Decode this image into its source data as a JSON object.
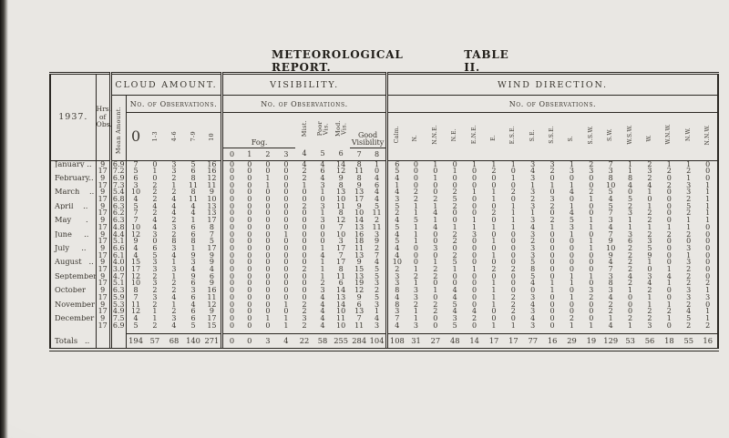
{
  "header": {
    "title": "METEOROLOGICAL REPORT.",
    "table_no": "TABLE II."
  },
  "table": {
    "year_label": "1937.",
    "hours_label": "Hrs.\nof\nObs.",
    "groups": {
      "cloud": {
        "title": "CLOUD AMOUNT.",
        "obs_label": "No. of Observations.",
        "mean_label": "Mean Amount.",
        "cols": [
          "0",
          "1-3",
          "4-6",
          "7-9",
          "10"
        ]
      },
      "visibility": {
        "title": "VISIBILITY.",
        "obs_label": "No. of Observations.",
        "fog_label": "Fog.",
        "mist_label": "Mist.",
        "poor_label": "Poor\nVis.",
        "mod_label": "Mod.\nVis.",
        "good_label": "Good\nVisibility",
        "cols": [
          "0",
          "1",
          "2",
          "3",
          "4",
          "5",
          "6",
          "7",
          "8"
        ]
      },
      "wind": {
        "title": "WIND DIRECTION.",
        "obs_label": "No. of Observations.",
        "cols": [
          "Calm.",
          "N.",
          "N.N.E.",
          "N.E.",
          "E.N.E.",
          "E.",
          "E.S.E.",
          "S.E.",
          "S.S.E.",
          "S.",
          "S.S.W.",
          "S.W.",
          "W.S.W.",
          "W.",
          "W.N.W.",
          "N.W.",
          "N.N.W."
        ]
      }
    },
    "rows": [
      {
        "month": "January ..",
        "hrs": "9",
        "mean": "6.9",
        "cloud": [
          7,
          0,
          3,
          5,
          16
        ],
        "vis": [
          0,
          0,
          0,
          0,
          4,
          4,
          14,
          8,
          1
        ],
        "wind": [
          6,
          0,
          1,
          0,
          1,
          1,
          1,
          3,
          3,
          1,
          2,
          7,
          1,
          2,
          1,
          1,
          0
        ]
      },
      {
        "month": "",
        "hrs": "17",
        "mean": "7.2",
        "cloud": [
          5,
          1,
          3,
          6,
          16
        ],
        "vis": [
          0,
          0,
          0,
          0,
          2,
          6,
          12,
          11,
          0
        ],
        "wind": [
          5,
          0,
          0,
          1,
          0,
          2,
          0,
          4,
          2,
          3,
          3,
          3,
          1,
          3,
          2,
          2,
          0
        ]
      },
      {
        "month": "February..",
        "hrs": "9",
        "mean": "6.9",
        "cloud": [
          6,
          0,
          2,
          8,
          12
        ],
        "vis": [
          0,
          0,
          1,
          0,
          2,
          4,
          9,
          8,
          4
        ],
        "wind": [
          4,
          0,
          1,
          0,
          0,
          0,
          1,
          3,
          0,
          0,
          0,
          8,
          8,
          2,
          0,
          1,
          0
        ]
      },
      {
        "month": "",
        "hrs": "17",
        "mean": "7.3",
        "cloud": [
          3,
          2,
          1,
          11,
          11
        ],
        "vis": [
          0,
          0,
          1,
          0,
          1,
          3,
          8,
          9,
          6
        ],
        "wind": [
          1,
          0,
          0,
          0,
          0,
          0,
          0,
          1,
          1,
          1,
          0,
          10,
          4,
          4,
          2,
          3,
          1
        ]
      },
      {
        "month": "March    ..",
        "hrs": "9",
        "mean": "5.4",
        "cloud": [
          10,
          2,
          2,
          8,
          9
        ],
        "vis": [
          0,
          0,
          0,
          0,
          0,
          1,
          13,
          13,
          4
        ],
        "wind": [
          4,
          2,
          0,
          2,
          1,
          1,
          2,
          3,
          0,
          4,
          2,
          5,
          0,
          1,
          0,
          3,
          1
        ]
      },
      {
        "month": "",
        "hrs": "17",
        "mean": "6.8",
        "cloud": [
          4,
          2,
          4,
          11,
          10
        ],
        "vis": [
          0,
          0,
          0,
          0,
          0,
          0,
          10,
          17,
          4
        ],
        "wind": [
          3,
          2,
          2,
          5,
          0,
          1,
          0,
          2,
          3,
          0,
          1,
          4,
          5,
          0,
          0,
          2,
          1
        ]
      },
      {
        "month": "April    ..",
        "hrs": "9",
        "mean": "6.3",
        "cloud": [
          5,
          4,
          4,
          4,
          13
        ],
        "vis": [
          0,
          0,
          0,
          0,
          2,
          3,
          11,
          9,
          5
        ],
        "wind": [
          5,
          1,
          1,
          2,
          0,
          0,
          1,
          3,
          2,
          1,
          0,
          5,
          2,
          1,
          0,
          5,
          1
        ]
      },
      {
        "month": "",
        "hrs": "17",
        "mean": "6.2",
        "cloud": [
          7,
          2,
          4,
          4,
          13
        ],
        "vis": [
          0,
          0,
          0,
          0,
          0,
          1,
          8,
          10,
          11
        ],
        "wind": [
          2,
          1,
          4,
          0,
          0,
          2,
          1,
          1,
          0,
          4,
          0,
          7,
          3,
          2,
          0,
          2,
          1
        ]
      },
      {
        "month": "May      .",
        "hrs": "9",
        "mean": "6.3",
        "cloud": [
          7,
          4,
          2,
          1,
          17
        ],
        "vis": [
          0,
          0,
          0,
          0,
          0,
          3,
          12,
          14,
          2
        ],
        "wind": [
          4,
          5,
          1,
          0,
          1,
          0,
          1,
          3,
          2,
          5,
          1,
          3,
          1,
          2,
          0,
          1,
          1
        ]
      },
      {
        "month": "",
        "hrs": "17",
        "mean": "4.8",
        "cloud": [
          10,
          4,
          3,
          6,
          8
        ],
        "vis": [
          0,
          0,
          0,
          0,
          0,
          0,
          7,
          13,
          11
        ],
        "wind": [
          5,
          1,
          4,
          1,
          1,
          1,
          1,
          4,
          1,
          3,
          1,
          4,
          1,
          1,
          1,
          1,
          0
        ]
      },
      {
        "month": "June     ..",
        "hrs": "9",
        "mean": "4.4",
        "cloud": [
          12,
          3,
          2,
          6,
          7
        ],
        "vis": [
          0,
          0,
          0,
          1,
          0,
          0,
          10,
          16,
          3
        ],
        "wind": [
          4,
          1,
          0,
          2,
          3,
          0,
          0,
          3,
          0,
          1,
          0,
          7,
          3,
          2,
          2,
          2,
          0
        ]
      },
      {
        "month": "",
        "hrs": "17",
        "mean": "5.1",
        "cloud": [
          9,
          0,
          8,
          8,
          5
        ],
        "vis": [
          0,
          0,
          0,
          0,
          0,
          0,
          3,
          18,
          9
        ],
        "wind": [
          5,
          1,
          0,
          2,
          0,
          1,
          0,
          2,
          0,
          0,
          1,
          9,
          6,
          3,
          0,
          0,
          0
        ]
      },
      {
        "month": "July     ..",
        "hrs": "9",
        "mean": "6.6",
        "cloud": [
          4,
          6,
          3,
          1,
          17
        ],
        "vis": [
          0,
          0,
          0,
          0,
          0,
          1,
          17,
          11,
          2
        ],
        "wind": [
          4,
          0,
          3,
          0,
          0,
          0,
          0,
          3,
          0,
          0,
          1,
          10,
          2,
          5,
          0,
          3,
          0
        ]
      },
      {
        "month": "",
        "hrs": "17",
        "mean": "6.1",
        "cloud": [
          4,
          5,
          4,
          9,
          9
        ],
        "vis": [
          0,
          0,
          0,
          0,
          0,
          4,
          7,
          13,
          7
        ],
        "wind": [
          4,
          0,
          0,
          2,
          0,
          1,
          0,
          3,
          0,
          0,
          0,
          9,
          2,
          9,
          0,
          1,
          0
        ]
      },
      {
        "month": "August   ..",
        "hrs": "9",
        "mean": "4.0",
        "cloud": [
          15,
          3,
          1,
          3,
          9
        ],
        "vis": [
          0,
          0,
          0,
          0,
          0,
          1,
          17,
          9,
          4
        ],
        "wind": [
          10,
          0,
          1,
          5,
          0,
          0,
          0,
          5,
          0,
          0,
          0,
          4,
          2,
          1,
          0,
          3,
          0
        ]
      },
      {
        "month": "",
        "hrs": "17",
        "mean": "3.0",
        "cloud": [
          17,
          3,
          3,
          4,
          4
        ],
        "vis": [
          0,
          0,
          0,
          0,
          2,
          1,
          8,
          15,
          5
        ],
        "wind": [
          2,
          1,
          2,
          1,
          1,
          2,
          2,
          8,
          0,
          0,
          0,
          7,
          2,
          0,
          1,
          2,
          0
        ]
      },
      {
        "month": "September",
        "hrs": "9",
        "mean": "4.7",
        "cloud": [
          12,
          2,
          1,
          9,
          6
        ],
        "vis": [
          0,
          0,
          0,
          0,
          0,
          1,
          11,
          13,
          5
        ],
        "wind": [
          3,
          2,
          2,
          0,
          0,
          0,
          0,
          5,
          0,
          1,
          1,
          3,
          4,
          3,
          4,
          2,
          0
        ]
      },
      {
        "month": "",
        "hrs": "17",
        "mean": "5.1",
        "cloud": [
          10,
          3,
          2,
          6,
          9
        ],
        "vis": [
          0,
          0,
          0,
          0,
          0,
          2,
          6,
          19,
          3
        ],
        "wind": [
          3,
          1,
          0,
          0,
          0,
          1,
          0,
          4,
          1,
          1,
          0,
          8,
          2,
          4,
          1,
          2,
          2
        ]
      },
      {
        "month": "October",
        "hrs": "9",
        "mean": "6.3",
        "cloud": [
          8,
          2,
          2,
          3,
          16
        ],
        "vis": [
          0,
          0,
          0,
          0,
          0,
          3,
          14,
          12,
          2
        ],
        "wind": [
          8,
          3,
          1,
          4,
          0,
          1,
          0,
          0,
          1,
          0,
          3,
          3,
          1,
          2,
          0,
          3,
          1
        ]
      },
      {
        "month": "",
        "hrs": "17",
        "mean": "5.9",
        "cloud": [
          7,
          3,
          4,
          6,
          11
        ],
        "vis": [
          0,
          0,
          0,
          0,
          0,
          4,
          13,
          9,
          5
        ],
        "wind": [
          4,
          3,
          0,
          4,
          0,
          1,
          2,
          3,
          0,
          1,
          2,
          4,
          0,
          1,
          0,
          3,
          3
        ]
      },
      {
        "month": "November",
        "hrs": "9",
        "mean": "5.3",
        "cloud": [
          11,
          2,
          1,
          4,
          12
        ],
        "vis": [
          0,
          0,
          0,
          1,
          2,
          4,
          14,
          6,
          3
        ],
        "wind": [
          8,
          2,
          2,
          5,
          0,
          1,
          2,
          4,
          0,
          0,
          0,
          2,
          0,
          1,
          1,
          2,
          0
        ]
      },
      {
        "month": "",
        "hrs": "17",
        "mean": "4.9",
        "cloud": [
          12,
          1,
          2,
          6,
          9
        ],
        "vis": [
          0,
          0,
          0,
          0,
          2,
          4,
          10,
          13,
          1
        ],
        "wind": [
          3,
          1,
          2,
          4,
          4,
          0,
          2,
          3,
          0,
          0,
          0,
          2,
          0,
          2,
          2,
          4,
          1
        ]
      },
      {
        "month": "December",
        "hrs": "9",
        "mean": "7.5",
        "cloud": [
          4,
          1,
          3,
          6,
          17
        ],
        "vis": [
          0,
          0,
          1,
          1,
          3,
          4,
          11,
          7,
          4
        ],
        "wind": [
          7,
          1,
          0,
          3,
          2,
          0,
          0,
          4,
          0,
          2,
          0,
          1,
          2,
          2,
          1,
          5,
          1
        ]
      },
      {
        "month": "",
        "hrs": "17",
        "mean": "6.9",
        "cloud": [
          5,
          2,
          4,
          5,
          15
        ],
        "vis": [
          0,
          0,
          0,
          1,
          2,
          4,
          10,
          11,
          3
        ],
        "wind": [
          4,
          3,
          0,
          5,
          0,
          1,
          1,
          3,
          0,
          1,
          1,
          4,
          1,
          3,
          0,
          2,
          2
        ]
      }
    ],
    "totals": {
      "label": "Totals   ..",
      "cloud": [
        194,
        57,
        68,
        140,
        271
      ],
      "vis": [
        0,
        0,
        3,
        4,
        22,
        58,
        255,
        284,
        104
      ],
      "wind": [
        108,
        31,
        27,
        48,
        14,
        17,
        17,
        77,
        16,
        29,
        19,
        129,
        53,
        56,
        18,
        55,
        16
      ]
    }
  }
}
